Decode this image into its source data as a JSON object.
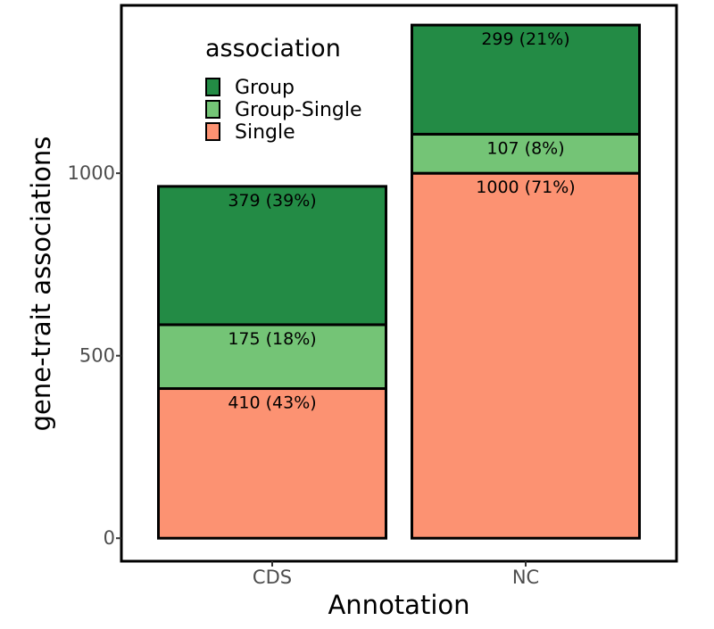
{
  "chart_data": {
    "type": "bar",
    "stacked": true,
    "xlabel": "Annotation",
    "ylabel": "gene-trait associations",
    "categories": [
      "CDS",
      "NC"
    ],
    "ylim": [
      -63,
      1460
    ],
    "yticks": [
      0,
      500,
      1000
    ],
    "series": [
      {
        "name": "Single",
        "color": "#fc9272",
        "values": [
          410,
          1000
        ],
        "labels": [
          "410 (43%)",
          "1000 (71%)"
        ]
      },
      {
        "name": "Group-Single",
        "color": "#74c476",
        "values": [
          175,
          107
        ],
        "labels": [
          "175 (18%)",
          "107 (8%)"
        ]
      },
      {
        "name": "Group",
        "color": "#238b45",
        "values": [
          379,
          299
        ],
        "labels": [
          "379 (39%)",
          "299 (21%)"
        ]
      }
    ],
    "legend": {
      "title": "association",
      "position": "top-left",
      "entries": [
        "Group",
        "Group-Single",
        "Single"
      ]
    },
    "grid": false
  }
}
